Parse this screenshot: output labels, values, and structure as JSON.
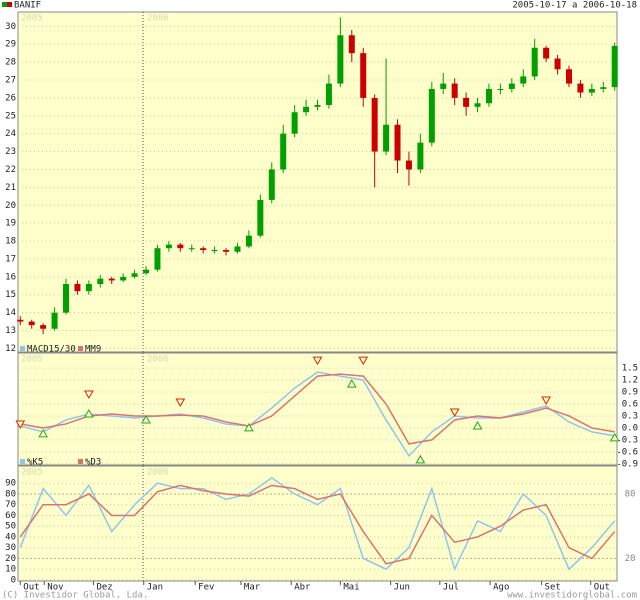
{
  "header": {
    "symbol": "BANIF",
    "range": "2005-10-17 a 2006-10-18"
  },
  "year_labels": [
    "2005",
    "2006"
  ],
  "footer": {
    "left": "(C) Investidor Global, Lda.",
    "right": "www.investidorglobal.com"
  },
  "chart_data": [
    {
      "type": "candlestick",
      "x": [
        0,
        1,
        2,
        3,
        4,
        5,
        6,
        7,
        8,
        9,
        10,
        11,
        12,
        13,
        14,
        15,
        16,
        17,
        18,
        19,
        20,
        21,
        22,
        23,
        24,
        25,
        26,
        27,
        28,
        29,
        30,
        31,
        32,
        33,
        34,
        35,
        36,
        37,
        38,
        39,
        40,
        41,
        42,
        43,
        44,
        45,
        46,
        47,
        48,
        49,
        50,
        51,
        52
      ],
      "open": [
        13.6,
        13.5,
        13.3,
        13.1,
        14.0,
        15.6,
        15.2,
        15.6,
        15.9,
        15.8,
        16.0,
        16.2,
        16.4,
        17.6,
        17.8,
        17.6,
        17.6,
        17.5,
        17.5,
        17.4,
        17.7,
        18.3,
        20.3,
        22.0,
        24.0,
        25.2,
        25.5,
        25.6,
        26.8,
        29.5,
        28.5,
        26.0,
        23.0,
        24.5,
        22.5,
        22.0,
        23.5,
        26.5,
        26.8,
        26.0,
        25.5,
        25.7,
        26.5,
        26.5,
        26.8,
        27.2,
        28.8,
        28.2,
        27.6,
        26.8,
        26.3,
        26.5,
        26.6
      ],
      "high": [
        13.8,
        13.6,
        13.4,
        14.3,
        15.9,
        15.8,
        15.8,
        16.1,
        16.0,
        16.2,
        16.4,
        16.6,
        17.8,
        18.0,
        17.9,
        17.8,
        17.7,
        17.7,
        17.6,
        17.9,
        18.6,
        20.6,
        22.4,
        24.5,
        25.6,
        25.9,
        25.9,
        27.3,
        30.5,
        29.8,
        28.8,
        26.2,
        28.2,
        24.8,
        23.0,
        24.0,
        26.9,
        27.4,
        27.1,
        26.3,
        26.0,
        26.8,
        26.8,
        27.1,
        27.6,
        29.3,
        28.9,
        28.4,
        27.8,
        27.0,
        26.8,
        26.9,
        29.1
      ],
      "low": [
        13.3,
        13.1,
        12.8,
        13.0,
        13.9,
        15.0,
        15.0,
        15.4,
        15.6,
        15.7,
        15.9,
        16.1,
        16.3,
        17.4,
        17.4,
        17.4,
        17.3,
        17.3,
        17.2,
        17.3,
        17.6,
        18.2,
        20.1,
        21.8,
        23.8,
        25.0,
        25.3,
        25.4,
        26.6,
        28.0,
        25.5,
        21.0,
        22.8,
        21.8,
        21.1,
        21.8,
        23.3,
        26.2,
        25.6,
        25.0,
        25.2,
        25.5,
        26.2,
        26.3,
        26.6,
        27.0,
        28.0,
        27.3,
        26.6,
        26.0,
        26.1,
        26.3,
        26.4
      ],
      "close": [
        13.5,
        13.3,
        13.1,
        14.0,
        15.6,
        15.2,
        15.6,
        15.9,
        15.8,
        16.0,
        16.2,
        16.4,
        17.6,
        17.8,
        17.6,
        17.6,
        17.5,
        17.5,
        17.4,
        17.7,
        18.3,
        20.3,
        22.0,
        24.0,
        25.2,
        25.5,
        25.6,
        26.8,
        29.5,
        28.5,
        26.0,
        23.0,
        24.5,
        22.5,
        22.0,
        23.5,
        26.5,
        26.8,
        26.0,
        25.5,
        25.7,
        26.5,
        26.5,
        26.8,
        27.2,
        28.8,
        28.2,
        27.6,
        26.8,
        26.3,
        26.5,
        26.6,
        28.9
      ],
      "up_color": "#00a000",
      "down_color": "#cc0000",
      "xlim": [
        -0.2,
        52.2
      ],
      "ylim": [
        11.8,
        30.8
      ],
      "yticks": [
        12,
        13,
        14,
        15,
        16,
        17,
        18,
        19,
        20,
        21,
        22,
        23,
        24,
        25,
        26,
        27,
        28,
        29,
        30
      ],
      "grid": true,
      "y_axis_side": "left"
    },
    {
      "type": "line",
      "x": [
        0,
        2,
        4,
        6,
        8,
        10,
        12,
        14,
        16,
        18,
        20,
        22,
        24,
        26,
        28,
        30,
        32,
        34,
        36,
        38,
        40,
        42,
        44,
        46,
        48,
        50,
        52
      ],
      "series": [
        {
          "name": "MACD15/30",
          "color": "#8cc6ee",
          "values": [
            0.05,
            -0.1,
            0.2,
            0.35,
            0.3,
            0.25,
            0.3,
            0.35,
            0.25,
            0.1,
            0.05,
            0.5,
            1.0,
            1.4,
            1.3,
            1.2,
            0.2,
            -0.7,
            -0.1,
            0.3,
            0.25,
            0.25,
            0.4,
            0.55,
            0.15,
            -0.1,
            -0.2
          ]
        },
        {
          "name": "MM9",
          "color": "#e07070",
          "values": [
            0.1,
            0.0,
            0.1,
            0.3,
            0.35,
            0.3,
            0.3,
            0.32,
            0.3,
            0.15,
            0.05,
            0.3,
            0.8,
            1.3,
            1.35,
            1.3,
            0.6,
            -0.4,
            -0.3,
            0.2,
            0.3,
            0.25,
            0.35,
            0.5,
            0.3,
            0.0,
            -0.1
          ]
        }
      ],
      "markers": [
        {
          "shape": "down",
          "color": "#dd2200",
          "x": [
            0,
            6,
            14,
            26,
            30,
            38,
            46
          ],
          "values": [
            0.1,
            0.85,
            0.65,
            1.7,
            1.7,
            0.4,
            0.7
          ]
        },
        {
          "shape": "up",
          "color": "#22aa22",
          "x": [
            2,
            6,
            11,
            20,
            29,
            35,
            40,
            52
          ],
          "values": [
            -0.15,
            0.35,
            0.2,
            0.0,
            1.1,
            -0.8,
            0.05,
            -0.25
          ]
        }
      ],
      "xlim": [
        -0.2,
        52.2
      ],
      "ylim": [
        -0.93,
        1.88
      ],
      "yticks": [
        1.5,
        1.2,
        0.9,
        0.6,
        0.3,
        {
          "value": 0,
          "label": "0.0"
        },
        -0.3,
        -0.6,
        -0.9
      ],
      "grid": true,
      "y_axis_side": "right"
    },
    {
      "type": "line",
      "x": [
        0,
        2,
        4,
        6,
        8,
        10,
        12,
        14,
        16,
        18,
        20,
        22,
        24,
        26,
        28,
        30,
        32,
        34,
        36,
        38,
        40,
        42,
        44,
        46,
        48,
        50,
        52
      ],
      "series": [
        {
          "name": "%K5",
          "color": "#8cc6ee",
          "values": [
            30,
            85,
            60,
            88,
            45,
            70,
            90,
            85,
            85,
            75,
            80,
            95,
            80,
            70,
            85,
            20,
            10,
            30,
            85,
            10,
            55,
            45,
            80,
            60,
            10,
            30,
            55
          ]
        },
        {
          "name": "%D3",
          "color": "#e07070",
          "values": [
            40,
            70,
            70,
            80,
            60,
            60,
            82,
            88,
            83,
            80,
            78,
            88,
            85,
            75,
            80,
            45,
            15,
            20,
            60,
            35,
            40,
            50,
            65,
            70,
            30,
            20,
            45
          ]
        }
      ],
      "xlim": [
        -0.2,
        52.2
      ],
      "ylim": [
        -1,
        106
      ],
      "yticks": [
        0,
        10,
        20,
        30,
        40,
        50,
        60,
        70,
        80,
        90
      ],
      "y2ticks": [
        20,
        80
      ],
      "xticks": [
        {
          "value": 0,
          "label": "Out"
        },
        {
          "value": 2.1,
          "label": "Nov"
        },
        {
          "value": 6.4,
          "label": "Dez"
        },
        {
          "value": 10.8,
          "label": "Jan"
        },
        {
          "value": 15.3,
          "label": "Fev"
        },
        {
          "value": 19.3,
          "label": "Mar"
        },
        {
          "value": 23.7,
          "label": "Abr"
        },
        {
          "value": 28.0,
          "label": "Mai"
        },
        {
          "value": 32.4,
          "label": "Jun"
        },
        {
          "value": 36.7,
          "label": "Jul"
        },
        {
          "value": 41.1,
          "label": "Ago"
        },
        {
          "value": 45.6,
          "label": "Set"
        },
        {
          "value": 49.9,
          "label": "Out"
        }
      ],
      "grid": true,
      "y_axis_side": "left"
    }
  ]
}
